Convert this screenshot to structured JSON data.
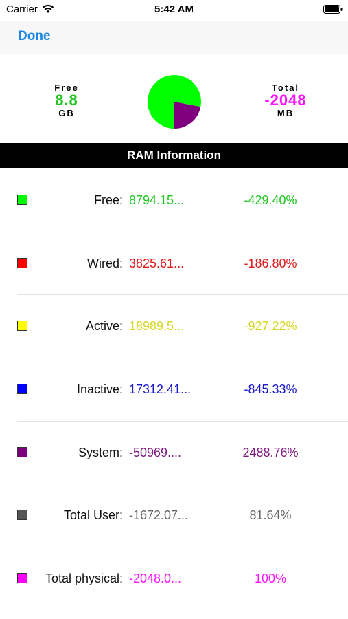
{
  "status_bar": {
    "carrier": "Carrier",
    "time": "5:42 AM",
    "icons": [
      "wifi-icon",
      "battery-icon"
    ]
  },
  "nav": {
    "done_label": "Done",
    "accent_color": "#1a87e6"
  },
  "summary": {
    "free": {
      "label": "Free",
      "value": "8.8",
      "unit": "GB",
      "color": "#22c522"
    },
    "total": {
      "label": "Total",
      "value": "-2048",
      "unit": "MB",
      "color": "#ff14ff"
    },
    "pie": [
      {
        "segment": "free",
        "color": "#00ff00",
        "fraction": 0.78
      },
      {
        "segment": "system",
        "color": "#7f007f",
        "fraction": 0.22
      }
    ]
  },
  "section_title": "RAM Information",
  "rows": [
    {
      "label": "Free:",
      "value": "8794.15...",
      "percent": "-429.40%",
      "color": "#22c522",
      "swatch": "#00ff00"
    },
    {
      "label": "Wired:",
      "value": "3825.61...",
      "percent": "-186.80%",
      "color": "#e01b1b",
      "swatch": "#ff0000"
    },
    {
      "label": "Active:",
      "value": "18989.5...",
      "percent": "-927.22%",
      "color": "#d6d624",
      "swatch": "#ffff00"
    },
    {
      "label": "Inactive:",
      "value": "17312.41...",
      "percent": "-845.33%",
      "color": "#1a1acc",
      "swatch": "#0000ff"
    },
    {
      "label": "System:",
      "value": "-50969....",
      "percent": "2488.76%",
      "color": "#7f1a7f",
      "swatch": "#7f007f"
    },
    {
      "label": "Total User:",
      "value": "-1672.07...",
      "percent": "81.64%",
      "color": "#666666",
      "swatch": "#555555"
    },
    {
      "label": "Total physical:",
      "value": "-2048.0...",
      "percent": "100%",
      "color": "#ff14ff",
      "swatch": "#ff00ff"
    }
  ]
}
